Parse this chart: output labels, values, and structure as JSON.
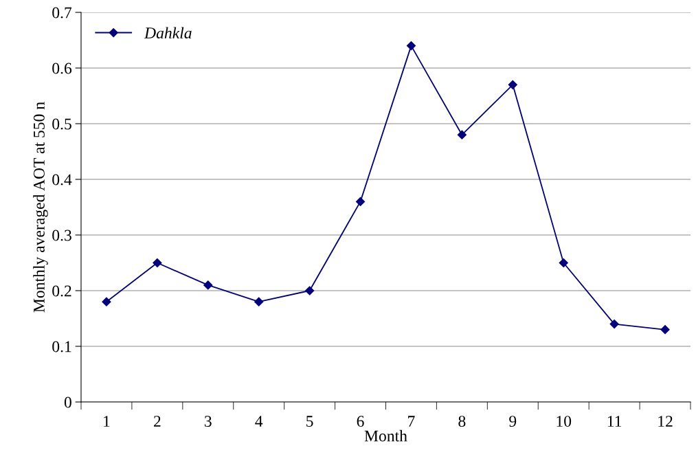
{
  "chart_data": {
    "type": "line",
    "xlabel": "Month",
    "ylabel": "Monthly averaged AOT at 550 n",
    "categories": [
      "1",
      "2",
      "3",
      "4",
      "5",
      "6",
      "7",
      "8",
      "9",
      "10",
      "11",
      "12"
    ],
    "series": [
      {
        "name": "Dahkla",
        "color": "#000080",
        "values": [
          0.18,
          0.25,
          0.21,
          0.18,
          0.2,
          0.36,
          0.64,
          0.48,
          0.57,
          0.25,
          0.14,
          0.13
        ]
      }
    ],
    "ylim": [
      0,
      0.7
    ],
    "yticks": [
      0,
      0.1,
      0.2,
      0.3,
      0.4,
      0.5,
      0.6,
      0.7
    ],
    "grid": "y",
    "legend": "top left",
    "marker": "diamond",
    "line_style": "solid"
  }
}
